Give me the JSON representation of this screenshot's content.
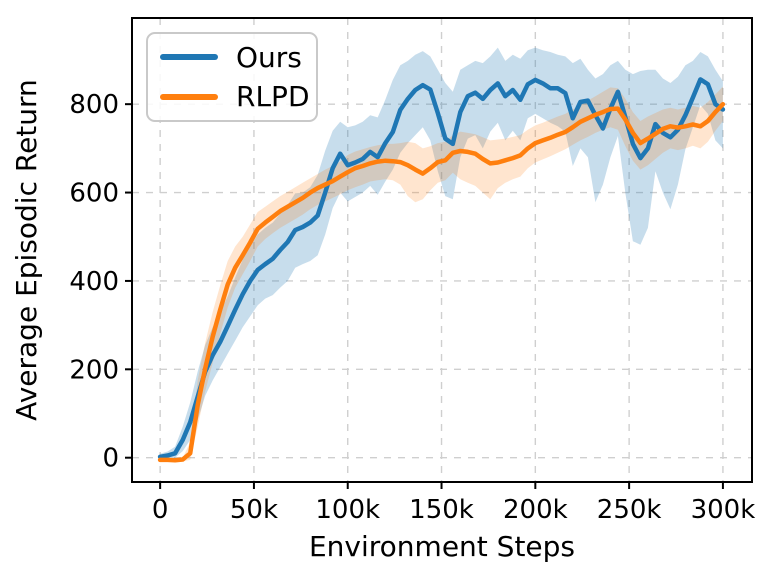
{
  "chart_data": {
    "type": "line",
    "title": "",
    "xlabel": "Environment Steps",
    "ylabel": "Average Episodic Return",
    "x_unit": "thousands_of_steps",
    "xlim": [
      -15,
      315.5
    ],
    "ylim": [
      -55,
      995
    ],
    "grid": {
      "visible": true,
      "style": "dashed"
    },
    "legend_position": "upper left",
    "xticks": [
      {
        "v": 0,
        "label": "0"
      },
      {
        "v": 50,
        "label": "50k"
      },
      {
        "v": 100,
        "label": "100k"
      },
      {
        "v": 150,
        "label": "150k"
      },
      {
        "v": 200,
        "label": "200k"
      },
      {
        "v": 250,
        "label": "250k"
      },
      {
        "v": 300,
        "label": "300k"
      }
    ],
    "yticks": [
      {
        "v": 0,
        "label": "0"
      },
      {
        "v": 200,
        "label": "200"
      },
      {
        "v": 400,
        "label": "400"
      },
      {
        "v": 600,
        "label": "600"
      },
      {
        "v": 800,
        "label": "800"
      }
    ],
    "series": [
      {
        "name": "Ours",
        "color": "#1f77b4",
        "band_opacity": 0.25,
        "x": [
          0,
          4,
          8,
          12,
          16,
          20,
          24,
          28,
          32,
          36,
          40,
          44,
          48,
          52,
          56,
          60,
          64,
          68,
          72,
          76,
          80,
          84,
          88,
          92,
          96,
          100,
          104,
          108,
          112,
          116,
          120,
          124,
          128,
          132,
          136,
          140,
          144,
          148,
          152,
          156,
          160,
          164,
          168,
          172,
          176,
          180,
          184,
          188,
          192,
          196,
          200,
          204,
          208,
          212,
          216,
          220,
          224,
          228,
          232,
          236,
          240,
          244,
          248,
          252,
          256,
          260,
          264,
          268,
          272,
          276,
          280,
          284,
          288,
          292,
          296,
          300
        ],
        "mean": [
          2,
          5,
          10,
          40,
          80,
          138,
          195,
          232,
          262,
          298,
          335,
          370,
          400,
          425,
          438,
          450,
          470,
          488,
          515,
          522,
          532,
          548,
          600,
          655,
          688,
          662,
          668,
          676,
          692,
          680,
          712,
          737,
          787,
          812,
          832,
          843,
          833,
          780,
          722,
          710,
          782,
          818,
          826,
          812,
          832,
          847,
          818,
          832,
          810,
          845,
          855,
          847,
          836,
          836,
          825,
          768,
          805,
          808,
          775,
          745,
          790,
          828,
          770,
          710,
          678,
          700,
          755,
          735,
          725,
          742,
          775,
          815,
          856,
          845,
          800,
          788
        ],
        "lower": [
          -5,
          -3,
          0,
          15,
          40,
          85,
          140,
          175,
          205,
          235,
          265,
          295,
          320,
          345,
          360,
          368,
          385,
          400,
          430,
          438,
          445,
          458,
          505,
          565,
          600,
          580,
          590,
          600,
          615,
          595,
          625,
          652,
          690,
          712,
          730,
          748,
          718,
          648,
          592,
          585,
          680,
          722,
          730,
          700,
          738,
          758,
          718,
          740,
          718,
          768,
          778,
          768,
          758,
          750,
          738,
          660,
          700,
          680,
          578,
          618,
          680,
          728,
          598,
          490,
          482,
          520,
          648,
          600,
          562,
          618,
          698,
          748,
          798,
          778,
          718,
          700
        ],
        "upper": [
          9,
          14,
          25,
          70,
          125,
          195,
          255,
          295,
          330,
          365,
          408,
          448,
          478,
          505,
          520,
          532,
          552,
          572,
          598,
          600,
          612,
          640,
          695,
          740,
          760,
          748,
          752,
          760,
          775,
          770,
          810,
          855,
          888,
          898,
          912,
          920,
          908,
          878,
          848,
          828,
          878,
          888,
          898,
          893,
          908,
          928,
          898,
          912,
          903,
          922,
          928,
          922,
          918,
          912,
          908,
          893,
          903,
          878,
          858,
          868,
          888,
          898,
          878,
          868,
          875,
          878,
          878,
          858,
          848,
          862,
          888,
          898,
          918,
          908,
          878,
          852
        ]
      },
      {
        "name": "RLPD",
        "color": "#ff7f0e",
        "band_opacity": 0.2,
        "x": [
          0,
          4,
          8,
          12,
          16,
          20,
          24,
          28,
          32,
          36,
          40,
          44,
          48,
          52,
          56,
          60,
          64,
          68,
          72,
          76,
          80,
          84,
          88,
          92,
          96,
          100,
          104,
          108,
          112,
          116,
          120,
          124,
          128,
          132,
          136,
          140,
          144,
          148,
          152,
          156,
          160,
          164,
          168,
          172,
          176,
          180,
          184,
          188,
          192,
          196,
          200,
          204,
          208,
          212,
          216,
          220,
          224,
          228,
          232,
          236,
          240,
          244,
          248,
          252,
          256,
          260,
          264,
          268,
          272,
          276,
          280,
          284,
          288,
          292,
          296,
          300
        ],
        "mean": [
          -5,
          -5,
          -6,
          -4,
          10,
          119,
          202,
          274,
          335,
          392,
          430,
          458,
          487,
          518,
          532,
          545,
          558,
          568,
          578,
          588,
          600,
          610,
          618,
          626,
          636,
          646,
          655,
          660,
          666,
          670,
          672,
          671,
          669,
          662,
          652,
          643,
          655,
          669,
          673,
          690,
          694,
          692,
          688,
          676,
          666,
          668,
          673,
          678,
          684,
          700,
          712,
          718,
          724,
          731,
          737,
          748,
          760,
          768,
          776,
          782,
          789,
          790,
          765,
          735,
          712,
          722,
          733,
          744,
          750,
          747,
          750,
          754,
          750,
          762,
          782,
          800
        ],
        "lower": [
          -9,
          -9,
          -10,
          -8,
          -5,
          70,
          150,
          215,
          280,
          340,
          385,
          415,
          445,
          478,
          495,
          508,
          520,
          530,
          540,
          550,
          562,
          572,
          580,
          588,
          596,
          605,
          612,
          618,
          625,
          628,
          630,
          628,
          618,
          592,
          578,
          585,
          605,
          622,
          628,
          645,
          630,
          622,
          615,
          600,
          585,
          610,
          622,
          630,
          636,
          655,
          668,
          675,
          682,
          690,
          698,
          708,
          718,
          726,
          735,
          742,
          748,
          742,
          705,
          672,
          652,
          662,
          676,
          690,
          700,
          696,
          700,
          706,
          700,
          715,
          740,
          762
        ],
        "upper": [
          -1,
          -1,
          -2,
          0,
          35,
          175,
          260,
          330,
          390,
          445,
          478,
          500,
          528,
          556,
          568,
          580,
          592,
          602,
          612,
          622,
          632,
          642,
          652,
          660,
          670,
          685,
          693,
          698,
          703,
          707,
          710,
          710,
          712,
          715,
          712,
          700,
          705,
          712,
          715,
          730,
          738,
          735,
          732,
          725,
          718,
          720,
          722,
          726,
          730,
          742,
          752,
          758,
          765,
          772,
          778,
          788,
          798,
          808,
          818,
          828,
          838,
          836,
          812,
          782,
          762,
          772,
          780,
          788,
          792,
          788,
          792,
          796,
          792,
          805,
          822,
          840
        ]
      }
    ]
  },
  "legend": {
    "items": [
      {
        "label": "Ours"
      },
      {
        "label": "RLPD"
      }
    ]
  }
}
